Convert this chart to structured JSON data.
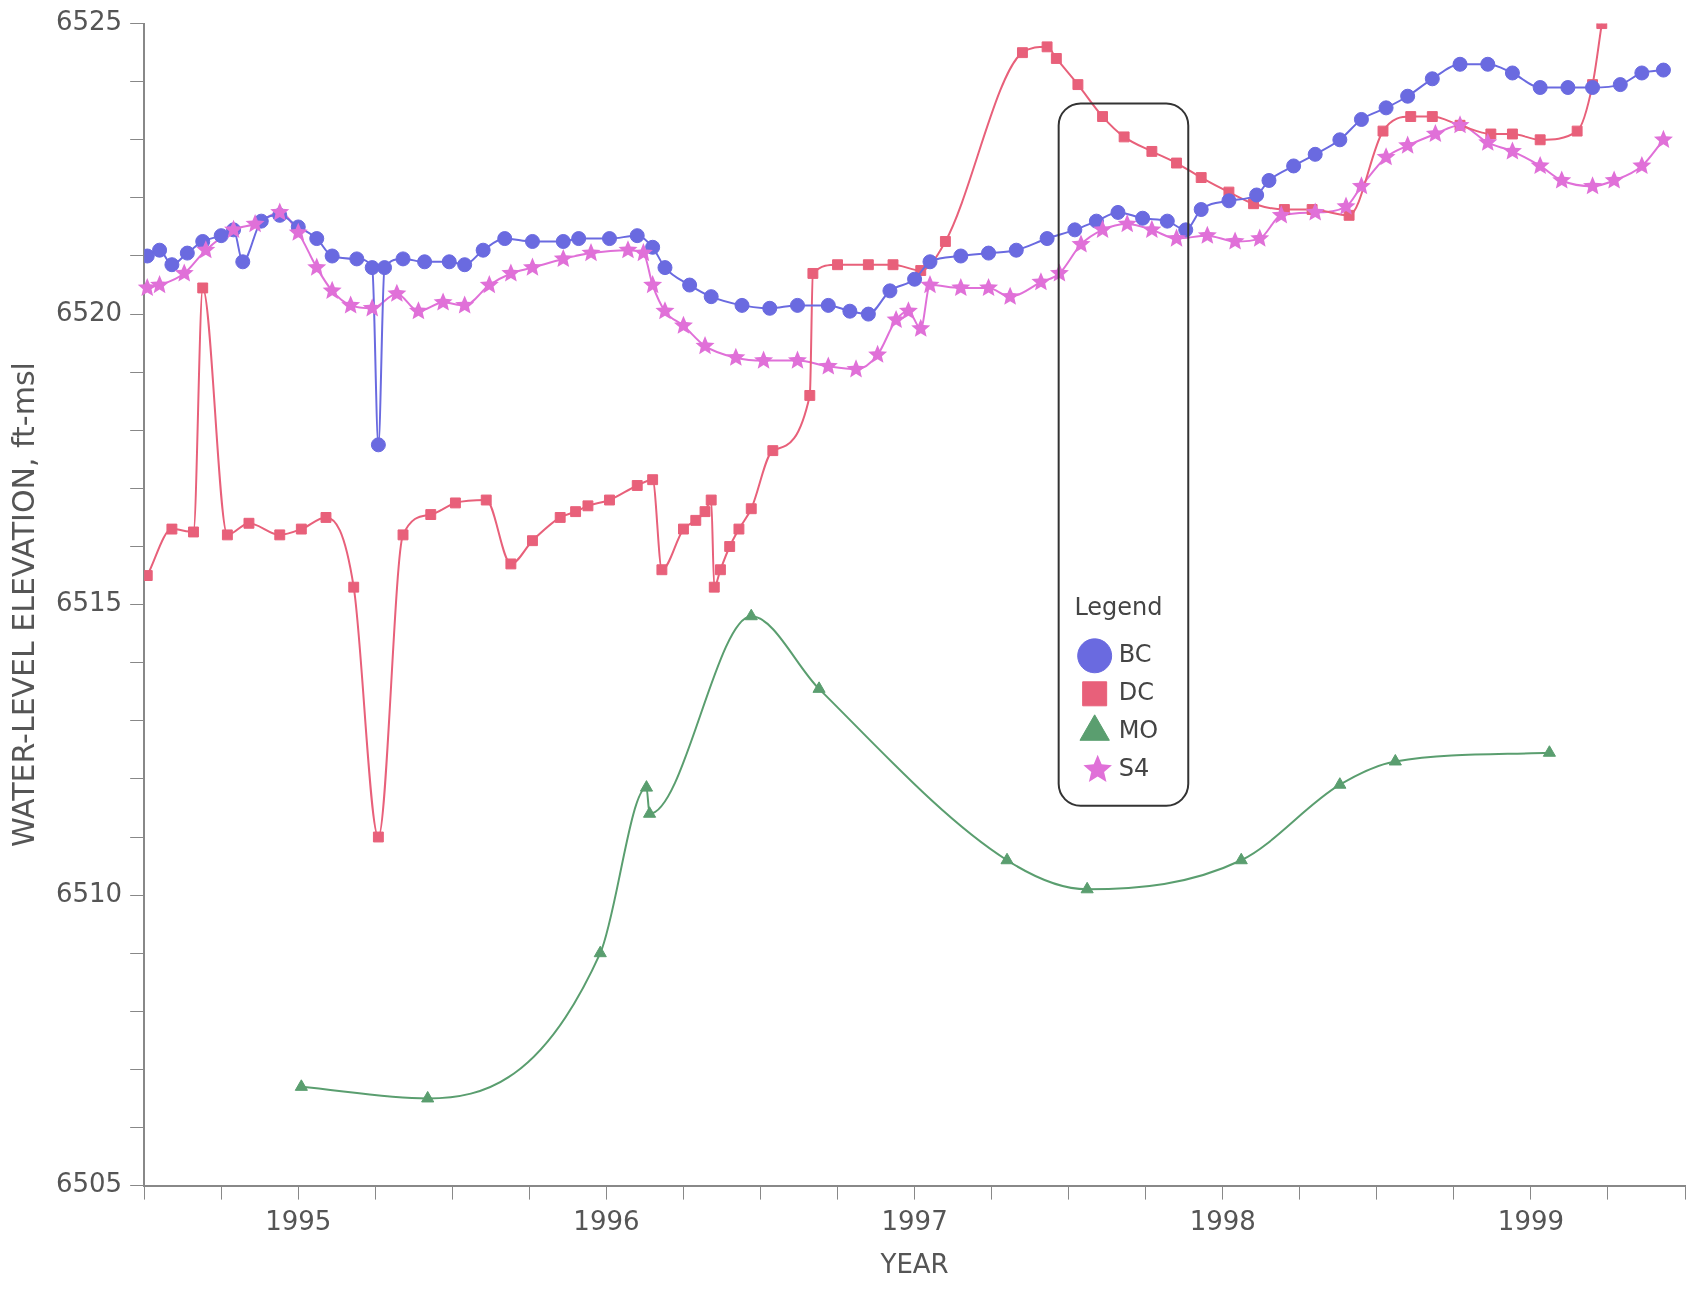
{
  "chart_data": {
    "type": "line",
    "xlabel": "YEAR",
    "ylabel": "WATER-LEVEL ELEVATION, ft-msl",
    "legend_title": "Legend",
    "legend": "right",
    "xlim": [
      1994.5,
      1999.5
    ],
    "xticks": [
      {
        "value": 1994.5,
        "label": null
      },
      {
        "value": 1994.75,
        "label": null
      },
      1995,
      {
        "value": 1995.25,
        "label": null
      },
      {
        "value": 1995.5,
        "label": null
      },
      {
        "value": 1995.75,
        "label": null
      },
      1996,
      {
        "value": 1996.25,
        "label": null
      },
      {
        "value": 1996.5,
        "label": null
      },
      {
        "value": 1996.75,
        "label": null
      },
      1997,
      {
        "value": 1997.25,
        "label": null
      },
      {
        "value": 1997.5,
        "label": null
      },
      {
        "value": 1997.75,
        "label": null
      },
      1998,
      {
        "value": 1998.25,
        "label": null
      },
      {
        "value": 1998.5,
        "label": null
      },
      {
        "value": 1998.75,
        "label": null
      },
      1999,
      {
        "value": 1999.25,
        "label": null
      },
      {
        "value": 1999.5,
        "label": null
      }
    ],
    "ylim": [
      6505,
      6525
    ],
    "yticks": [
      6505,
      {
        "value": 6506,
        "label": null
      },
      {
        "value": 6507,
        "label": null
      },
      {
        "value": 6508,
        "label": null
      },
      {
        "value": 6509,
        "label": null
      },
      6510,
      {
        "value": 6511,
        "label": null
      },
      {
        "value": 6512,
        "label": null
      },
      {
        "value": 6513,
        "label": null
      },
      {
        "value": 6514,
        "label": null
      },
      6515,
      {
        "value": 6516,
        "label": null
      },
      {
        "value": 6517,
        "label": null
      },
      {
        "value": 6518,
        "label": null
      },
      {
        "value": 6519,
        "label": null
      },
      6520,
      {
        "value": 6521,
        "label": null
      },
      {
        "value": 6522,
        "label": null
      },
      {
        "value": 6523,
        "label": null
      },
      {
        "value": 6524,
        "label": null
      },
      6525
    ],
    "series": [
      {
        "name": "BC",
        "color": "#6a6ae0",
        "marker": "circle",
        "x": [
          1994.51,
          1994.55,
          1994.59,
          1994.64,
          1994.69,
          1994.75,
          1994.79,
          1994.82,
          1994.88,
          1994.94,
          1995.0,
          1995.06,
          1995.11,
          1995.19,
          1995.24,
          1995.26,
          1995.28,
          1995.34,
          1995.41,
          1995.49,
          1995.54,
          1995.6,
          1995.67,
          1995.76,
          1995.86,
          1995.91,
          1996.01,
          1996.1,
          1996.15,
          1996.19,
          1996.27,
          1996.34,
          1996.44,
          1996.53,
          1996.62,
          1996.72,
          1996.79,
          1996.85,
          1996.92,
          1997.0,
          1997.05,
          1997.15,
          1997.24,
          1997.33,
          1997.43,
          1997.52,
          1997.59,
          1997.66,
          1997.74,
          1997.82,
          1997.88,
          1997.93,
          1998.02,
          1998.11,
          1998.15,
          1998.23,
          1998.3,
          1998.38,
          1998.45,
          1998.53,
          1998.6,
          1998.68,
          1998.77,
          1998.86,
          1998.94,
          1999.03,
          1999.12,
          1999.2,
          1999.29,
          1999.36,
          1999.43
        ],
        "values": [
          6521.0,
          6521.1,
          6520.85,
          6521.05,
          6521.25,
          6521.35,
          6521.45,
          6520.9,
          6521.6,
          6521.7,
          6521.5,
          6521.3,
          6521.0,
          6520.95,
          6520.8,
          6517.75,
          6520.8,
          6520.95,
          6520.9,
          6520.9,
          6520.85,
          6521.1,
          6521.3,
          6521.25,
          6521.25,
          6521.3,
          6521.3,
          6521.35,
          6521.15,
          6520.8,
          6520.5,
          6520.3,
          6520.15,
          6520.1,
          6520.15,
          6520.15,
          6520.05,
          6520.0,
          6520.4,
          6520.6,
          6520.9,
          6521.0,
          6521.05,
          6521.1,
          6521.3,
          6521.45,
          6521.6,
          6521.75,
          6521.65,
          6521.6,
          6521.45,
          6521.8,
          6521.95,
          6522.05,
          6522.3,
          6522.55,
          6522.75,
          6523.0,
          6523.35,
          6523.55,
          6523.75,
          6524.05,
          6524.3,
          6524.3,
          6524.15,
          6523.9,
          6523.9,
          6523.9,
          6523.95,
          6524.15,
          6524.2
        ]
      },
      {
        "name": "DC",
        "color": "#e8607a",
        "marker": "square",
        "x": [
          1994.51,
          1994.59,
          1994.66,
          1994.69,
          1994.77,
          1994.84,
          1994.94,
          1995.01,
          1995.09,
          1995.18,
          1995.26,
          1995.34,
          1995.43,
          1995.51,
          1995.61,
          1995.69,
          1995.76,
          1995.85,
          1995.9,
          1995.94,
          1996.01,
          1996.1,
          1996.15,
          1996.18,
          1996.25,
          1996.29,
          1996.32,
          1996.34,
          1996.35,
          1996.37,
          1996.4,
          1996.43,
          1996.47,
          1996.54,
          1996.66,
          1996.67,
          1996.75,
          1996.85,
          1996.93,
          1997.02,
          1997.1,
          1997.35,
          1997.43,
          1997.46,
          1997.53,
          1997.61,
          1997.68,
          1997.77,
          1997.85,
          1997.93,
          1998.02,
          1998.1,
          1998.2,
          1998.29,
          1998.41,
          1998.52,
          1998.61,
          1998.68,
          1998.77,
          1998.87,
          1998.94,
          1999.03,
          1999.15,
          1999.2,
          1999.23
        ],
        "values": [
          6515.5,
          6516.3,
          6516.25,
          6520.45,
          6516.2,
          6516.4,
          6516.2,
          6516.3,
          6516.5,
          6515.3,
          6511.0,
          6516.2,
          6516.55,
          6516.75,
          6516.8,
          6515.7,
          6516.1,
          6516.5,
          6516.6,
          6516.7,
          6516.8,
          6517.05,
          6517.15,
          6515.6,
          6516.3,
          6516.45,
          6516.6,
          6516.8,
          6515.3,
          6515.6,
          6516.0,
          6516.3,
          6516.65,
          6517.65,
          6518.6,
          6520.7,
          6520.85,
          6520.85,
          6520.85,
          6520.75,
          6521.25,
          6524.5,
          6524.6,
          6524.4,
          6523.95,
          6523.4,
          6523.05,
          6522.8,
          6522.6,
          6522.35,
          6522.1,
          6521.9,
          6521.8,
          6521.8,
          6521.7,
          6523.15,
          6523.4,
          6523.4,
          6523.25,
          6523.1,
          6523.1,
          6523.0,
          6523.15,
          6523.95,
          6525
        ]
      },
      {
        "name": "MO",
        "color": "#5a9e6f",
        "marker": "triangle",
        "x": [
          1995.01,
          1995.42,
          1995.98,
          1996.13,
          1996.14,
          1996.47,
          1996.69,
          1997.3,
          1997.56,
          1998.06,
          1998.38,
          1998.56,
          1999.06
        ],
        "values": [
          6506.7,
          6506.5,
          6509.0,
          6511.85,
          6511.4,
          6514.8,
          6513.55,
          6510.6,
          6510.1,
          6510.6,
          6511.9,
          6512.3,
          6512.45
        ]
      },
      {
        "name": "S4",
        "color": "#e070d8",
        "marker": "star",
        "x": [
          1994.51,
          1994.55,
          1994.63,
          1994.7,
          1994.79,
          1994.86,
          1994.94,
          1995.0,
          1995.06,
          1995.11,
          1995.17,
          1995.24,
          1995.32,
          1995.39,
          1995.47,
          1995.54,
          1995.62,
          1995.69,
          1995.76,
          1995.86,
          1995.95,
          1996.07,
          1996.12,
          1996.15,
          1996.19,
          1996.25,
          1996.32,
          1996.42,
          1996.51,
          1996.62,
          1996.72,
          1996.81,
          1996.88,
          1996.94,
          1996.98,
          1997.02,
          1997.05,
          1997.15,
          1997.24,
          1997.31,
          1997.41,
          1997.47,
          1997.54,
          1997.61,
          1997.69,
          1997.77,
          1997.85,
          1997.95,
          1998.04,
          1998.12,
          1998.19,
          1998.3,
          1998.4,
          1998.45,
          1998.53,
          1998.6,
          1998.69,
          1998.77,
          1998.86,
          1998.94,
          1999.03,
          1999.1,
          1999.2,
          1999.27,
          1999.36,
          1999.43
        ],
        "values": [
          6520.45,
          6520.5,
          6520.7,
          6521.1,
          6521.45,
          6521.55,
          6521.75,
          6521.4,
          6520.8,
          6520.4,
          6520.15,
          6520.1,
          6520.35,
          6520.05,
          6520.2,
          6520.15,
          6520.5,
          6520.7,
          6520.8,
          6520.95,
          6521.05,
          6521.1,
          6521.05,
          6520.5,
          6520.05,
          6519.8,
          6519.45,
          6519.25,
          6519.2,
          6519.2,
          6519.1,
          6519.05,
          6519.3,
          6519.9,
          6520.05,
          6519.75,
          6520.5,
          6520.45,
          6520.45,
          6520.3,
          6520.55,
          6520.7,
          6521.2,
          6521.45,
          6521.55,
          6521.45,
          6521.3,
          6521.35,
          6521.25,
          6521.3,
          6521.7,
          6521.75,
          6521.85,
          6522.2,
          6522.7,
          6522.9,
          6523.1,
          6523.25,
          6522.95,
          6522.8,
          6522.55,
          6522.3,
          6522.2,
          6522.3,
          6522.55,
          6523.0
        ]
      }
    ]
  }
}
